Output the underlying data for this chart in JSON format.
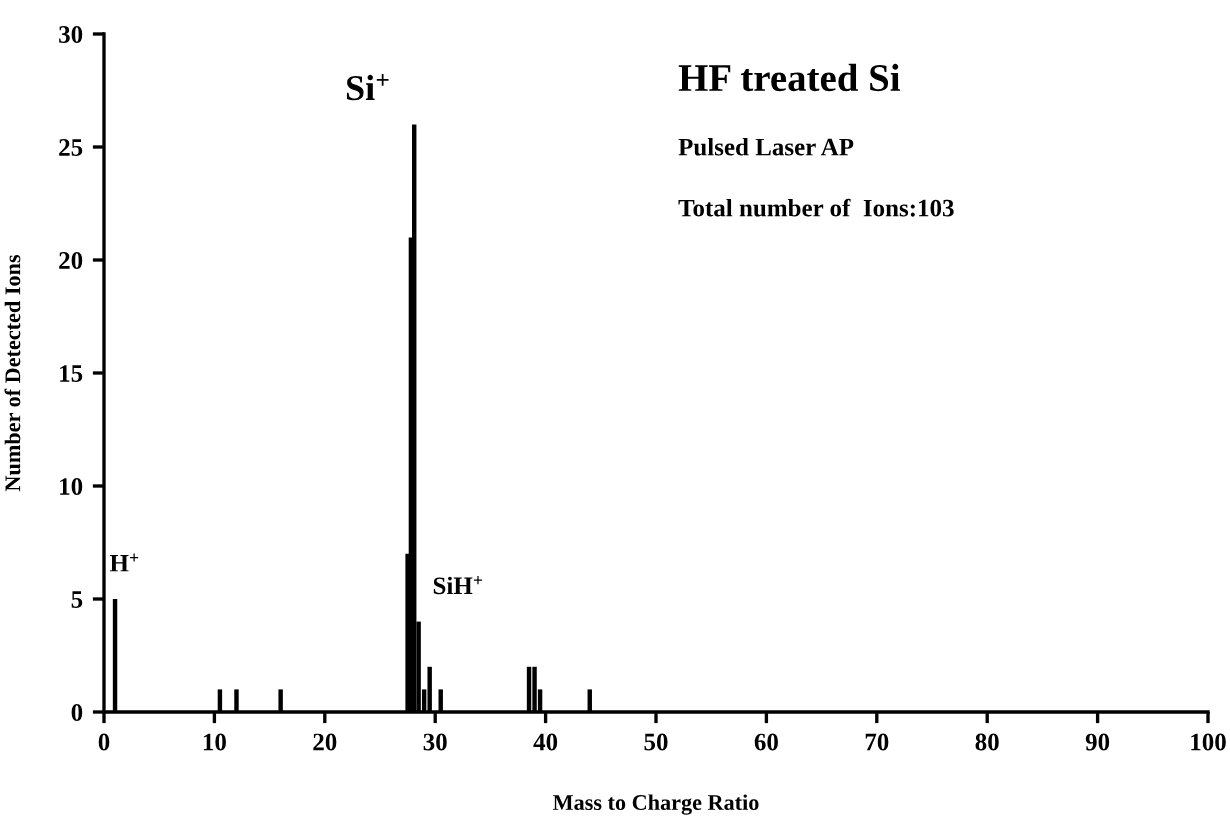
{
  "chart_data": {
    "type": "bar",
    "title": "HF treated Si",
    "subtitle": "Pulsed Laser AP",
    "xlabel": "Mass to Charge Ratio",
    "ylabel": "Number of Detected Ions",
    "x": [
      1,
      10.5,
      12,
      16,
      27.5,
      27.8,
      28.1,
      28.5,
      29,
      29.5,
      30.5,
      38.5,
      39,
      39.5,
      44
    ],
    "values": [
      5,
      1,
      1,
      1,
      7,
      21,
      26,
      4,
      1,
      2,
      1,
      2,
      2,
      1,
      1
    ],
    "color": "#000000",
    "xlim": [
      0,
      100
    ],
    "xticks": [
      0,
      10,
      20,
      30,
      40,
      50,
      60,
      70,
      80,
      90,
      100
    ],
    "ylim": [
      0,
      30
    ],
    "yticks": [
      0,
      5,
      10,
      15,
      20,
      25,
      30
    ],
    "grid": false,
    "legend": false,
    "annotations": [
      {
        "text": "Si$^{+}$",
        "x": 28,
        "y": 26
      },
      {
        "text": "H$^{+}$",
        "x": 1,
        "y": 5
      },
      {
        "text": "SiH$^{+}$",
        "x": 29,
        "y": 4
      },
      "Total number of  Ions:103"
    ]
  }
}
